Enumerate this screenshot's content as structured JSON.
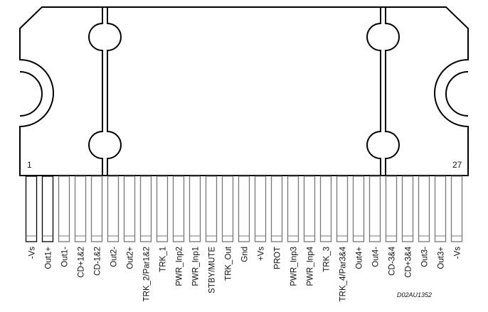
{
  "package": {
    "first_pin_number": "1",
    "last_pin_number": "27",
    "drawing_code": "D02AU1352"
  },
  "pins": [
    "-Vs",
    "Out1+",
    "Out1-",
    "CD+1&2",
    "CD-1&2",
    "Out2-",
    "Out2+",
    "TRK_2/Par1&2",
    "TRK_1",
    "PWR_Inp2",
    "PWR_Inp1",
    "STBY/MUTE",
    "TRK_Out",
    "Gnd",
    "+Vs",
    "PROT",
    "PWR_Inp3",
    "PWR_Inp4",
    "TRK_3",
    "TRK_4/Par3&4",
    "Out4+",
    "Out4-",
    "CD-3&4",
    "CD+3&4",
    "Out3-",
    "Out3+",
    "-Vs"
  ]
}
